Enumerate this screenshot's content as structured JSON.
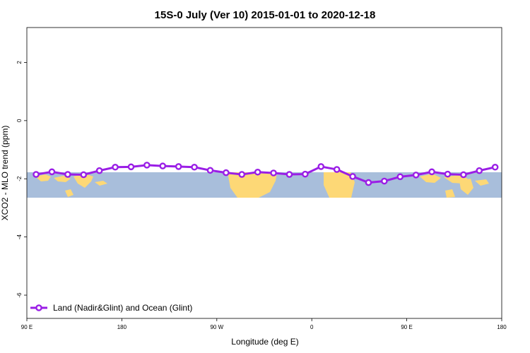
{
  "chart_data": {
    "type": "line",
    "title": "15S-0 July (Ver 10)   2015-01-01 to 2020-12-18",
    "xlabel": "Longitude (deg E)",
    "ylabel": "XCO2 - MLO trend (ppm)",
    "xlim": [
      90,
      450
    ],
    "ylim": [
      -6.8,
      3.2
    ],
    "x_ticks": [
      {
        "value": 90,
        "label": "90 E"
      },
      {
        "value": 162,
        "label": "180"
      },
      {
        "value": 234,
        "label": "90 W"
      },
      {
        "value": 306,
        "label": "0"
      },
      {
        "value": 378,
        "label": "90 E"
      },
      {
        "value": 450,
        "label": "180"
      }
    ],
    "y_ticks": [
      {
        "value": 2,
        "label": "2"
      },
      {
        "value": 0,
        "label": "0"
      },
      {
        "value": -2,
        "label": "-2"
      },
      {
        "value": -4,
        "label": "-4"
      },
      {
        "value": -6,
        "label": "-6"
      }
    ],
    "legend": {
      "position": "bottom-left"
    },
    "series": [
      {
        "name": "Land (Nadir&Glint) and Ocean (Glint)",
        "color": "#9a1ee6",
        "x": [
          97,
          109,
          121,
          133,
          145,
          157,
          169,
          181,
          193,
          205,
          217,
          229,
          241,
          253,
          265,
          277,
          289,
          301,
          313,
          325,
          337,
          349,
          361,
          373,
          385,
          397,
          409,
          421,
          433,
          445
        ],
        "y": [
          -1.85,
          -1.76,
          -1.85,
          -1.86,
          -1.72,
          -1.6,
          -1.59,
          -1.53,
          -1.56,
          -1.58,
          -1.6,
          -1.71,
          -1.79,
          -1.85,
          -1.77,
          -1.8,
          -1.85,
          -1.84,
          -1.58,
          -1.68,
          -1.92,
          -2.13,
          -2.08,
          -1.93,
          -1.87,
          -1.76,
          -1.84,
          -1.86,
          -1.72,
          -1.6
        ]
      }
    ]
  }
}
